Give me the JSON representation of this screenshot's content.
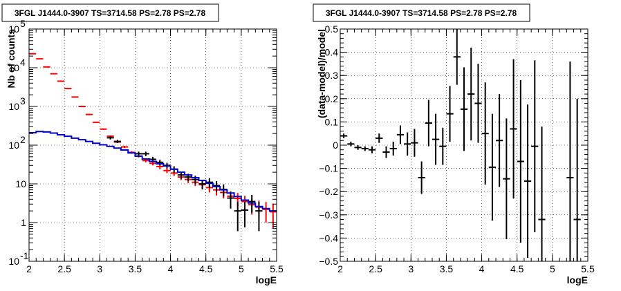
{
  "chart_data": [
    {
      "type": "scatter",
      "title": "3FGL J1444.0-3907 TS=3714.58 PS=2.78 PS=2.78",
      "xlabel": "logE",
      "ylabel": "Nb of counts",
      "xlim": [
        2,
        5.5
      ],
      "ylim": [
        0.1,
        100000
      ],
      "y_scale": "log",
      "grid": true,
      "x_ticks": [
        "2",
        "2.5",
        "3",
        "3.5",
        "4",
        "4.5",
        "5",
        "5.5"
      ],
      "y_ticks": [
        {
          "v": 0.1,
          "base": "10",
          "exp": "-1"
        },
        {
          "v": 1,
          "base": "1",
          "exp": ""
        },
        {
          "v": 10,
          "base": "10",
          "exp": ""
        },
        {
          "v": 100,
          "base": "10",
          "exp": "2"
        },
        {
          "v": 1000,
          "base": "10",
          "exp": "3"
        },
        {
          "v": 10000,
          "base": "10",
          "exp": "4"
        },
        {
          "v": 100000,
          "base": "10",
          "exp": "5"
        }
      ],
      "bin_half_width": 0.05,
      "series": [
        {
          "color": "#ff0000",
          "style": "errorbar",
          "x": [
            2.05,
            2.15,
            2.25,
            2.35,
            2.45,
            2.55,
            2.65,
            2.75,
            2.85,
            2.95,
            3.05,
            3.15,
            3.25,
            3.35,
            3.45,
            3.55,
            3.65,
            3.75,
            3.85,
            3.95,
            4.05,
            4.15,
            4.25,
            4.35,
            4.45,
            4.55,
            4.65,
            4.75,
            4.85,
            4.95,
            5.05,
            5.15,
            5.25,
            5.35,
            5.45
          ],
          "y": [
            23000,
            17000,
            10500,
            7000,
            4500,
            2900,
            1750,
            1000,
            620,
            390,
            260,
            170,
            120,
            90,
            65,
            52,
            40,
            34,
            28,
            22,
            19,
            15,
            13,
            11,
            9.5,
            8,
            7,
            6,
            4.8,
            4.2,
            3.5,
            2.9,
            2.5,
            2.2,
            1.9
          ],
          "y_low": [
            22500,
            16700,
            10300,
            6900,
            4400,
            2850,
            1700,
            970,
            600,
            375,
            250,
            162,
            113,
            84,
            60,
            48,
            36,
            30,
            24,
            19,
            16,
            12.5,
            10.5,
            8.8,
            7.4,
            6,
            5,
            4.2,
            3.2,
            2.6,
            2.1,
            1.6,
            1.3,
            1.0,
            0.7
          ],
          "y_high": [
            23500,
            17300,
            10700,
            7100,
            4600,
            2950,
            1800,
            1030,
            640,
            405,
            270,
            178,
            127,
            96,
            70,
            56,
            44,
            38,
            32,
            25,
            22,
            17.5,
            15.5,
            13.2,
            11.6,
            10,
            9,
            7.8,
            6.4,
            5.8,
            4.9,
            4.2,
            3.7,
            3.4,
            3.1
          ]
        },
        {
          "color": "#000000",
          "style": "errorbar",
          "x": [
            3.15,
            3.25,
            3.55,
            3.65,
            3.75,
            3.85,
            3.95,
            4.05,
            4.15,
            4.25,
            4.35,
            4.45,
            4.55,
            4.65,
            4.75,
            4.85,
            4.95,
            5.05,
            5.15,
            5.25
          ],
          "y": [
            155,
            125,
            60,
            60,
            43,
            36,
            30,
            24,
            17,
            15,
            13,
            10,
            11,
            9,
            7.2,
            4.3,
            2,
            2.1,
            3.5,
            2
          ],
          "y_low": [
            140,
            113,
            52,
            52,
            36,
            30,
            25,
            19.5,
            13.5,
            11.8,
            9.8,
            7.2,
            7.9,
            6.2,
            4.7,
            2.3,
            0.6,
            0.75,
            1.8,
            0.6
          ],
          "y_high": [
            170,
            137,
            68,
            68,
            50,
            42,
            35,
            28.5,
            20.5,
            18.2,
            16.2,
            12.8,
            14.1,
            11.8,
            9.7,
            6.3,
            3.4,
            3.45,
            5.2,
            3.4
          ]
        },
        {
          "color": "#0000cc",
          "style": "step",
          "x": [
            2.05,
            2.15,
            2.25,
            2.35,
            2.45,
            2.55,
            2.65,
            2.75,
            2.85,
            2.95,
            3.05,
            3.15,
            3.25,
            3.35,
            3.45,
            3.55,
            3.65,
            3.75,
            3.85,
            3.95,
            4.05,
            4.15,
            4.25,
            4.35,
            4.45,
            4.55,
            4.65,
            4.75,
            4.85,
            4.95,
            5.05,
            5.15,
            5.25,
            5.35,
            5.45
          ],
          "y": [
            210,
            225,
            220,
            205,
            185,
            170,
            152,
            138,
            125,
            112,
            102,
            93,
            84,
            75,
            63,
            52,
            44,
            38,
            33,
            29,
            24,
            20,
            17,
            14.5,
            12.3,
            10.3,
            8.5,
            7,
            5.8,
            4.7,
            3.8,
            3.2,
            2.6,
            2.3,
            2.0
          ]
        }
      ]
    },
    {
      "type": "scatter",
      "title": "3FGL J1444.0-3907 TS=3714.58 PS=2.78 PS=2.78",
      "xlabel": "logE",
      "ylabel": "(data-model)/model",
      "xlim": [
        2,
        5.5
      ],
      "ylim": [
        -0.5,
        0.5
      ],
      "y_scale": "linear",
      "grid": true,
      "x_ticks": [
        "2",
        "2.5",
        "3",
        "3.5",
        "4",
        "4.5",
        "5",
        "5.5"
      ],
      "y_ticks": [
        "−0.5",
        "−0.4",
        "−0.3",
        "−0.2",
        "−0.1",
        "0",
        "0.1",
        "0.2",
        "0.3",
        "0.4",
        "0.5"
      ],
      "y_tick_values": [
        -0.5,
        -0.4,
        -0.3,
        -0.2,
        -0.1,
        0,
        0.1,
        0.2,
        0.3,
        0.4,
        0.5
      ],
      "bin_half_width": 0.05,
      "series": [
        {
          "color": "#000000",
          "style": "errorbar",
          "x": [
            2.05,
            2.15,
            2.25,
            2.35,
            2.45,
            2.55,
            2.65,
            2.75,
            2.85,
            2.95,
            3.05,
            3.15,
            3.25,
            3.35,
            3.45,
            3.55,
            3.65,
            3.75,
            3.85,
            3.95,
            4.05,
            4.15,
            4.25,
            4.35,
            4.45,
            4.55,
            4.65,
            4.75,
            4.85,
            5.25,
            5.35
          ],
          "y": [
            0.04,
            0.005,
            -0.01,
            -0.015,
            -0.02,
            0.03,
            -0.03,
            -0.015,
            0.045,
            0.005,
            0.01,
            -0.14,
            0.095,
            0.025,
            -0.005,
            0.135,
            0.38,
            0.155,
            0.22,
            0.18,
            0.05,
            -0.095,
            0.02,
            -0.145,
            0.07,
            -0.07,
            -0.155,
            -0.005,
            -0.32,
            -0.14,
            -0.32
          ],
          "err": [
            0.01,
            0.01,
            0.01,
            0.01,
            0.015,
            0.02,
            0.025,
            0.03,
            0.04,
            0.05,
            0.06,
            0.07,
            0.1,
            0.11,
            0.08,
            0.12,
            0.12,
            0.18,
            0.2,
            0.17,
            0.22,
            0.23,
            0.2,
            0.26,
            0.3,
            0.35,
            0.33,
            0.37,
            0.4,
            0.5,
            0.52
          ]
        }
      ]
    }
  ]
}
